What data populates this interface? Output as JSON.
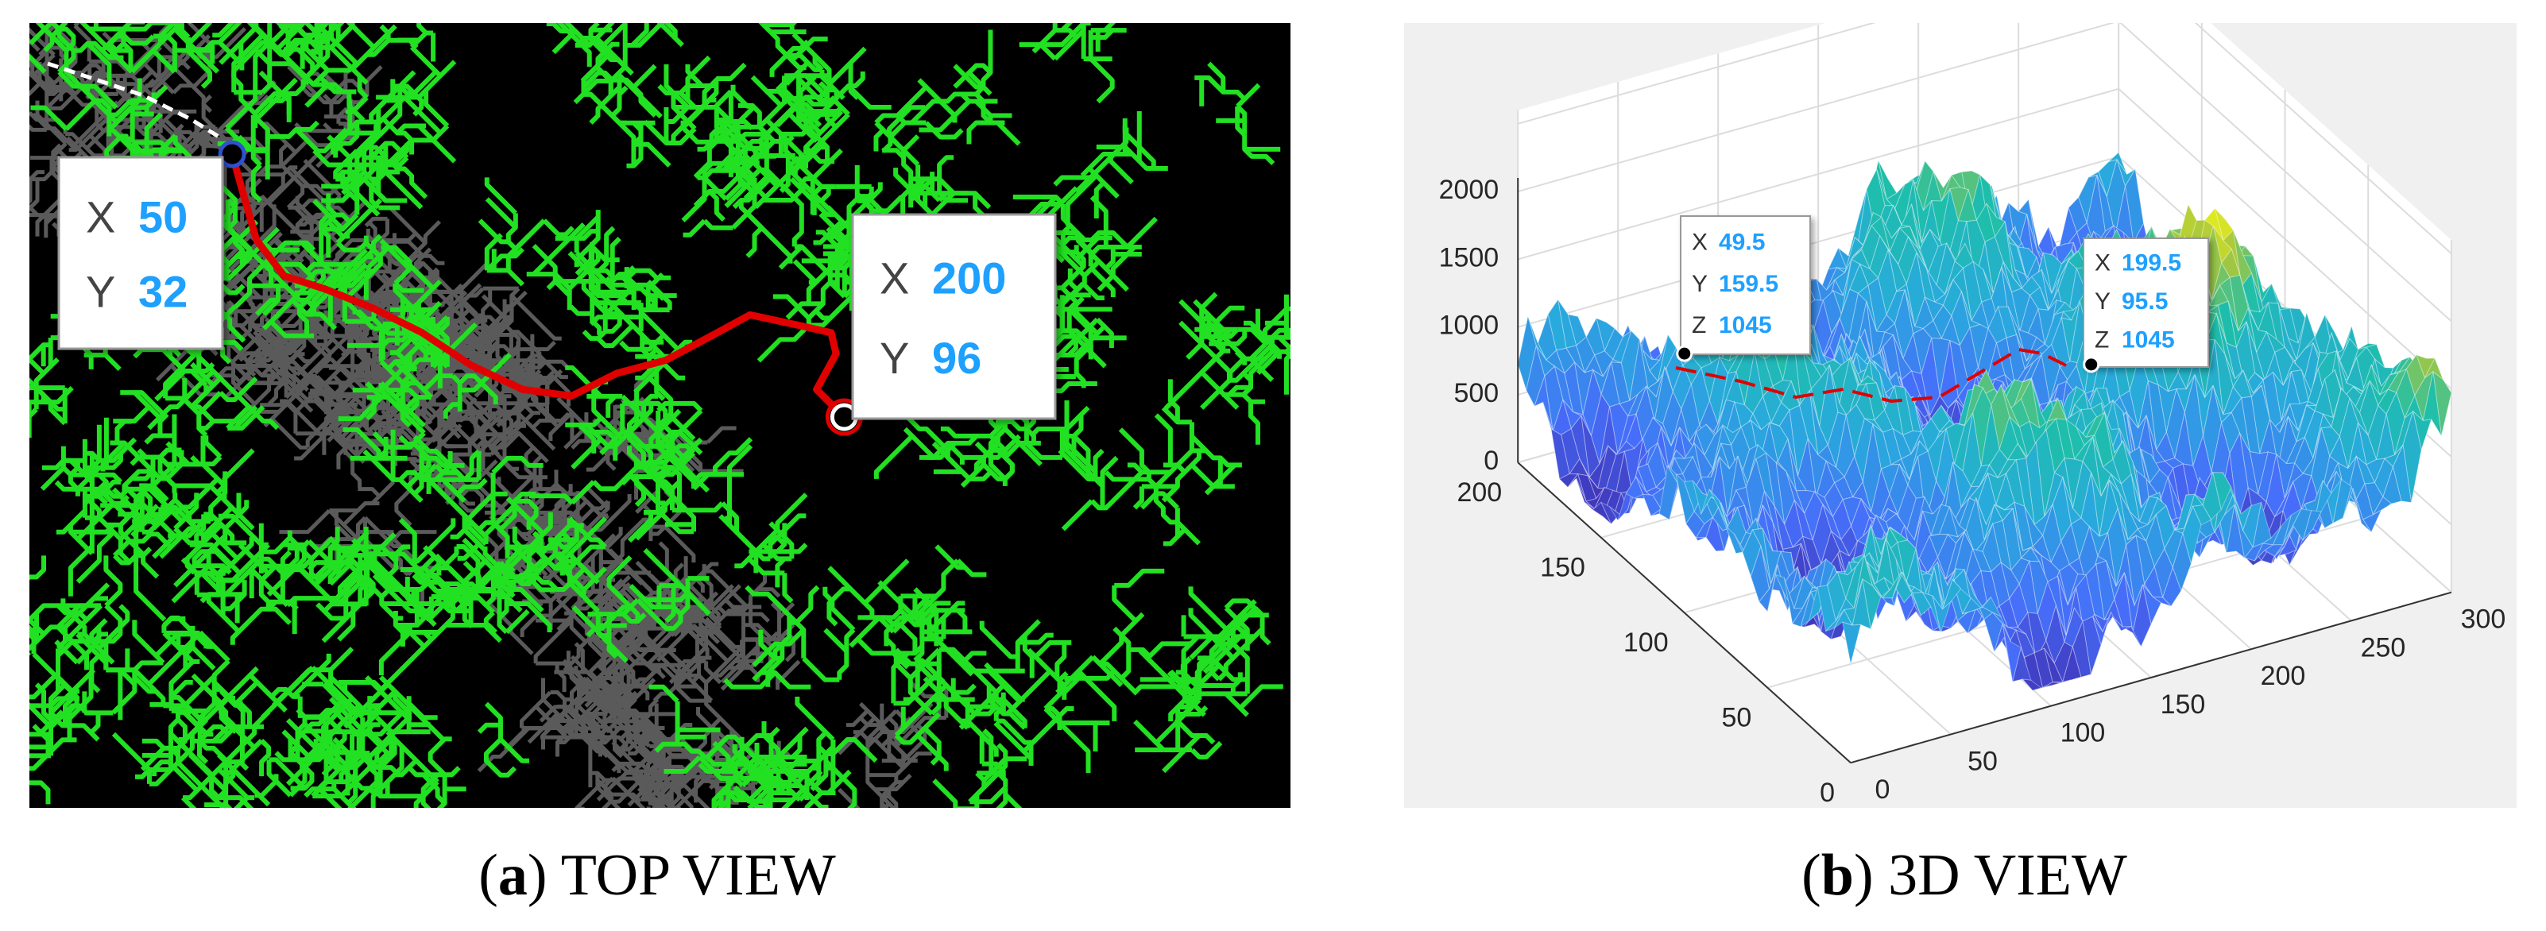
{
  "panel_a": {
    "datatips": [
      {
        "x_label": "X",
        "x": 50,
        "y_label": "Y",
        "y": 32
      },
      {
        "x_label": "X",
        "x": 200,
        "y_label": "Y",
        "y": 96
      }
    ],
    "caption": {
      "open": "(",
      "letter": "a",
      "close": ")",
      "text": "TOP VIEW"
    }
  },
  "panel_b": {
    "z_ticks": [
      0,
      500,
      1000,
      1500,
      2000
    ],
    "y_ticks": [
      0,
      50,
      100,
      150,
      200
    ],
    "x_ticks": [
      0,
      50,
      100,
      150,
      200,
      250,
      300
    ],
    "datatips": [
      {
        "x_label": "X",
        "x": 49.5,
        "y_label": "Y",
        "y": 159.5,
        "z_label": "Z",
        "z": 1045
      },
      {
        "x_label": "X",
        "x": 199.5,
        "y_label": "Y",
        "y": 95.5,
        "z_label": "Z",
        "z": 1045
      }
    ],
    "caption": {
      "open": "(",
      "letter": "b",
      "close": ")",
      "text": "3D VIEW"
    }
  }
}
